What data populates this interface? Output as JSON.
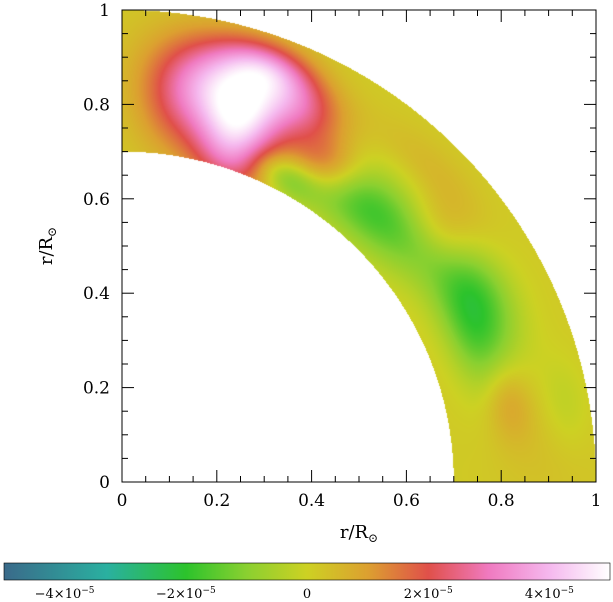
{
  "chart_data": {
    "type": "heatmap",
    "title": "",
    "geometry": "quarter-annulus (solar meridional plane)",
    "xlabel": {
      "main": "r/R",
      "sub": "⊙"
    },
    "ylabel": {
      "main": "r/R",
      "sub": "⊙"
    },
    "xlim": [
      0,
      1
    ],
    "ylim": [
      0,
      1
    ],
    "inner_radius": 0.7,
    "outer_radius": 1.0,
    "xticks": [
      {
        "value": 0,
        "label": "0"
      },
      {
        "value": 0.2,
        "label": "0.2"
      },
      {
        "value": 0.4,
        "label": "0.4"
      },
      {
        "value": 0.6,
        "label": "0.6"
      },
      {
        "value": 0.8,
        "label": "0.8"
      },
      {
        "value": 1,
        "label": "1"
      }
    ],
    "yticks": [
      {
        "value": 0,
        "label": "0"
      },
      {
        "value": 0.2,
        "label": "0.2"
      },
      {
        "value": 0.4,
        "label": "0.4"
      },
      {
        "value": 0.6,
        "label": "0.6"
      },
      {
        "value": 0.8,
        "label": "0.8"
      },
      {
        "value": 1,
        "label": "1"
      }
    ],
    "grid": false,
    "colorbar": {
      "orientation": "horizontal",
      "position": "bottom",
      "range": [
        -5e-05,
        5e-05
      ],
      "colormap": [
        {
          "value": -5e-05,
          "color": "#3a6a8a"
        },
        {
          "value": -3.3e-05,
          "color": "#2ab0a0"
        },
        {
          "value": -2e-05,
          "color": "#2cc32c"
        },
        {
          "value": -1e-05,
          "color": "#8ad030"
        },
        {
          "value": 0,
          "color": "#cdd123"
        },
        {
          "value": 1e-05,
          "color": "#dca030"
        },
        {
          "value": 2e-05,
          "color": "#e0504a"
        },
        {
          "value": 3e-05,
          "color": "#f07ac0"
        },
        {
          "value": 4e-05,
          "color": "#f5b8ee"
        },
        {
          "value": 5e-05,
          "color": "#ffffff"
        }
      ],
      "ticks": [
        {
          "value": -4e-05,
          "label": "−4×10",
          "exp": "−5"
        },
        {
          "value": -2e-05,
          "label": "−2×10",
          "exp": "−5"
        },
        {
          "value": 0,
          "label": "0",
          "exp": ""
        },
        {
          "value": 2e-05,
          "label": "2×10",
          "exp": "−5"
        },
        {
          "value": 4e-05,
          "label": "4×10",
          "exp": "−5"
        }
      ]
    },
    "field_features": [
      {
        "r": 0.9,
        "lat_deg": 3,
        "value": 2e-06,
        "width_r": 0.12,
        "width_lat": 8
      },
      {
        "r": 0.95,
        "lat_deg": 10,
        "value": -4e-06,
        "width_r": 0.05,
        "width_lat": 6
      },
      {
        "r": 0.83,
        "lat_deg": 12,
        "value": 9e-06,
        "width_r": 0.05,
        "width_lat": 6
      },
      {
        "r": 0.85,
        "lat_deg": 28,
        "value": -1.6e-05,
        "width_r": 0.07,
        "width_lat": 9
      },
      {
        "r": 0.8,
        "lat_deg": 22,
        "value": -1.2e-05,
        "width_r": 0.06,
        "width_lat": 10
      },
      {
        "r": 0.86,
        "lat_deg": 38,
        "value": 8e-06,
        "width_r": 0.06,
        "width_lat": 6
      },
      {
        "r": 0.93,
        "lat_deg": 45,
        "value": 4e-06,
        "width_r": 0.05,
        "width_lat": 10
      },
      {
        "r": 0.79,
        "lat_deg": 45,
        "value": -1.2e-05,
        "width_r": 0.08,
        "width_lat": 12
      },
      {
        "r": 0.77,
        "lat_deg": 52,
        "value": -1e-05,
        "width_r": 0.07,
        "width_lat": 12
      },
      {
        "r": 0.73,
        "lat_deg": 62,
        "value": -1.4e-05,
        "width_r": 0.04,
        "width_lat": 6
      },
      {
        "r": 0.71,
        "lat_deg": 68,
        "value": 6e-06,
        "width_r": 0.05,
        "width_lat": 8
      },
      {
        "r": 0.8,
        "lat_deg": 58,
        "value": 1.9e-05,
        "width_r": 0.06,
        "width_lat": 6
      },
      {
        "r": 0.88,
        "lat_deg": 64,
        "value": 1.5e-05,
        "width_r": 0.06,
        "width_lat": 6
      },
      {
        "r": 0.93,
        "lat_deg": 70,
        "value": 1.6e-05,
        "width_r": 0.05,
        "width_lat": 6
      },
      {
        "r": 0.78,
        "lat_deg": 72,
        "value": 3.6e-05,
        "width_r": 0.1,
        "width_lat": 7
      },
      {
        "r": 0.88,
        "lat_deg": 74,
        "value": 3.2e-05,
        "width_r": 0.09,
        "width_lat": 8
      },
      {
        "r": 0.83,
        "lat_deg": 82,
        "value": 1.5e-05,
        "width_r": 0.12,
        "width_lat": 6
      },
      {
        "r": 0.85,
        "lat_deg": 89,
        "value": 1e-06,
        "width_r": 0.2,
        "width_lat": 5
      }
    ]
  }
}
